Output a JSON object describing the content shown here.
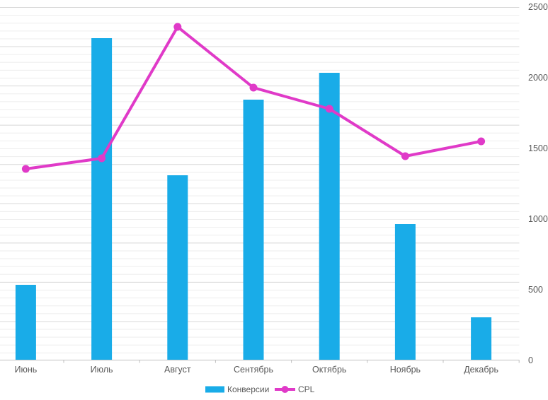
{
  "chart_data": {
    "type": "combo",
    "title": "",
    "categories": [
      "Июнь",
      "Июль",
      "Август",
      "Сентябрь",
      "Октябрь",
      "Ноябрь",
      "Декабрь"
    ],
    "series": [
      {
        "name": "Конверсии",
        "type": "bar",
        "color": "#19ACE8",
        "values": [
          535,
          2280,
          1310,
          1845,
          2035,
          965,
          305
        ]
      },
      {
        "name": "CPL",
        "type": "line",
        "color": "#E03AC8",
        "values": [
          1355,
          1430,
          2360,
          1930,
          1780,
          1445,
          1550
        ]
      }
    ],
    "y_axis": {
      "side": "right",
      "tick_labels": [
        "0",
        "500",
        "1000",
        "1500",
        "2000",
        "2500"
      ],
      "min": 0,
      "max": 2500
    },
    "x_axis": {
      "tick_labels": [
        "Июнь",
        "Июль",
        "Август",
        "Сентябрь",
        "Октябрь",
        "Ноябрь",
        "Декабрь"
      ]
    },
    "legend": {
      "position": "bottom",
      "entries": [
        {
          "label": "Конверсии",
          "swatch": "bar-swatch",
          "color": "#19ACE8"
        },
        {
          "label": "CPL",
          "swatch": "line-swatch",
          "color": "#E03AC8"
        }
      ]
    },
    "layout_hints": {
      "grid": "minor horizontal gridlines with darker majors",
      "legend_position": "bottom-center"
    },
    "colors": {
      "grid_minor": "#EDEDED",
      "grid_major": "#D8D8D8",
      "axis_line": "#BFBFBF",
      "text": "#595959",
      "background": "#FFFFFF"
    }
  }
}
